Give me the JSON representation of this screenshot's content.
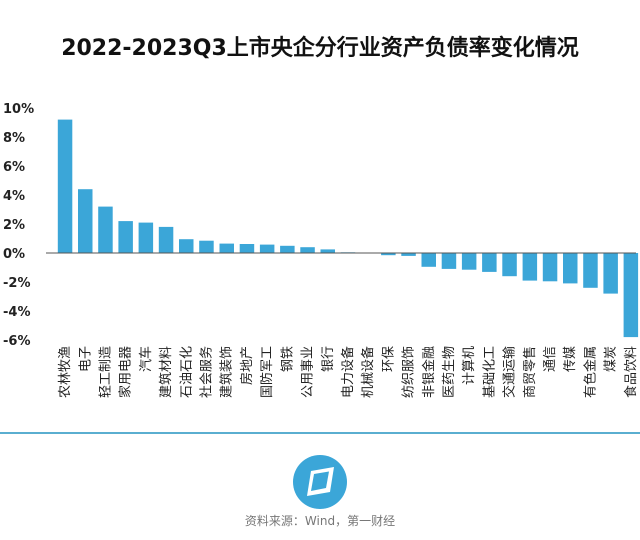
{
  "chart_data": {
    "type": "bar",
    "title": "2022-2023Q3上市央企分行业资产负债率变化情况",
    "xlabel": "",
    "ylabel": "",
    "ylim": [
      -6,
      10
    ],
    "yticks": [
      "10%",
      "8%",
      "6%",
      "4%",
      "2%",
      "0%",
      "-2%",
      "-4%",
      "-6%"
    ],
    "ytick_values": [
      10,
      8,
      6,
      4,
      2,
      0,
      -2,
      -4,
      -6
    ],
    "grid": false,
    "legend": "none",
    "bar_color": "#3ba6d8",
    "categories": [
      "农林牧渔",
      "电子",
      "轻工制造",
      "家用电器",
      "汽车",
      "建筑材料",
      "石油石化",
      "社会服务",
      "建筑装饰",
      "房地产",
      "国防军工",
      "钢铁",
      "公用事业",
      "银行",
      "电力设备",
      "机械设备",
      "环保",
      "纺织服饰",
      "非银金融",
      "医药生物",
      "计算机",
      "基础化工",
      "交通运输",
      "商贸零售",
      "通信",
      "传媒",
      "有色金属",
      "煤炭",
      "食品饮料"
    ],
    "values": [
      9.2,
      4.4,
      3.2,
      2.2,
      2.1,
      1.8,
      0.95,
      0.85,
      0.65,
      0.62,
      0.58,
      0.5,
      0.4,
      0.25,
      0.05,
      0.02,
      -0.15,
      -0.2,
      -0.95,
      -1.1,
      -1.15,
      -1.3,
      -1.6,
      -1.9,
      -1.95,
      -2.1,
      -2.4,
      -2.8,
      -5.8
    ]
  },
  "footer": {
    "source": "资料来源：Wind，第一财经",
    "divider_color": "#5aaed0",
    "logo_icon": "yicai-logo-icon",
    "logo_color": "#3ba6d8"
  }
}
